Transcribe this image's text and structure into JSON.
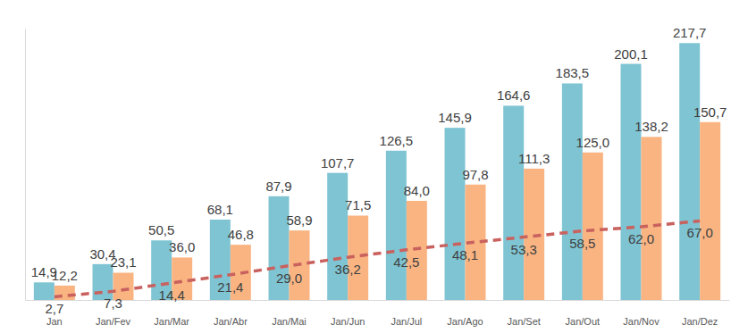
{
  "chart_data": {
    "type": "bar",
    "categories": [
      "Jan",
      "Jan/Fev",
      "Jan/Mar",
      "Jan/Abr",
      "Jan/Mai",
      "Jan/Jun",
      "Jan/Jul",
      "Jan/Ago",
      "Jan/Set",
      "Jan/Out",
      "Jan/Nov",
      "Jan/Dez"
    ],
    "series": [
      {
        "type": "bar",
        "color": "#7ec4d3",
        "values": [
          14.9,
          30.4,
          50.5,
          68.1,
          87.9,
          107.7,
          126.5,
          145.9,
          164.6,
          183.5,
          200.1,
          217.7
        ],
        "value_labels": [
          "14,9",
          "30,4",
          "50,5",
          "68,1",
          "87,9",
          "107,7",
          "126,5",
          "145,9",
          "164,6",
          "183,5",
          "200,1",
          "217,7"
        ]
      },
      {
        "type": "bar",
        "color": "#f9b482",
        "values": [
          12.2,
          23.1,
          36.0,
          46.8,
          58.9,
          71.5,
          84.0,
          97.8,
          111.3,
          125.0,
          138.2,
          150.7
        ],
        "value_labels": [
          "12,2",
          "23,1",
          "36,0",
          "46,8",
          "58,9",
          "71,5",
          "84,0",
          "97,8",
          "111,3",
          "125,0",
          "138,2",
          "150,7"
        ]
      },
      {
        "type": "line",
        "color": "#c9615e",
        "line_style": "dashed",
        "values": [
          2.7,
          7.3,
          14.4,
          21.4,
          29.0,
          36.2,
          42.5,
          48.1,
          53.3,
          58.5,
          62.0,
          67.0
        ],
        "value_labels": [
          "2,7",
          "7,3",
          "14,4",
          "21,4",
          "29,0",
          "36,2",
          "42,5",
          "48,1",
          "53,3",
          "58,5",
          "62,0",
          "67,0"
        ]
      }
    ],
    "ylim": [
      0,
      230
    ],
    "data_labels": true,
    "tick_labels": "x"
  }
}
